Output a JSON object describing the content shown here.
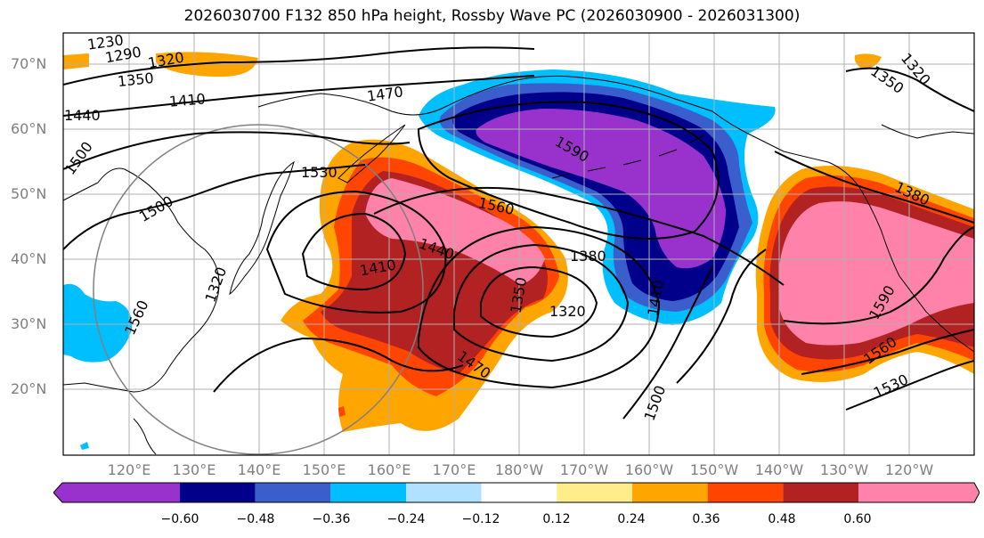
{
  "title": "2026030700 F132 850 hPa height, Rossby Wave PC (2026030900 - 2026031300)",
  "lat_labels": [
    "70°N",
    "60°N",
    "50°N",
    "40°N",
    "30°N",
    "20°N"
  ],
  "lon_labels": [
    "120°E",
    "130°E",
    "140°E",
    "150°E",
    "160°E",
    "170°E",
    "180°W",
    "170°W",
    "160°W",
    "150°W",
    "140°W",
    "130°W",
    "120°W"
  ],
  "colorbar": {
    "ticks": [
      "−0.60",
      "−0.48",
      "−0.36",
      "−0.24",
      "−0.12",
      "0.12",
      "0.24",
      "0.36",
      "0.48",
      "0.60"
    ],
    "colors": [
      "#9932cc",
      "#00008b",
      "#3a5fcd",
      "#00bfff",
      "#b0e2ff",
      "#ffffff",
      "#ffec8b",
      "#ffa500",
      "#ff4500",
      "#b22222",
      "#ff82ab"
    ]
  },
  "contour_labels": [
    "1230",
    "1290",
    "1320",
    "1350",
    "1410",
    "1440",
    "1470",
    "1500",
    "1500",
    "1530",
    "1560",
    "1590",
    "1440",
    "1410",
    "1380",
    "1350",
    "1320",
    "1410",
    "1320",
    "1560",
    "1470",
    "1500",
    "1590",
    "1560",
    "1530",
    "1380",
    "1320",
    "1350"
  ],
  "fill_colors": {
    "strong_pos": "#ff82ab",
    "pos_048": "#b22222",
    "pos_036": "#ff4500",
    "pos_024": "#ffa500",
    "neg_strong": "#9932cc",
    "neg_048": "#00008b",
    "neg_036": "#3a5fcd",
    "neg_024": "#00bfff"
  }
}
